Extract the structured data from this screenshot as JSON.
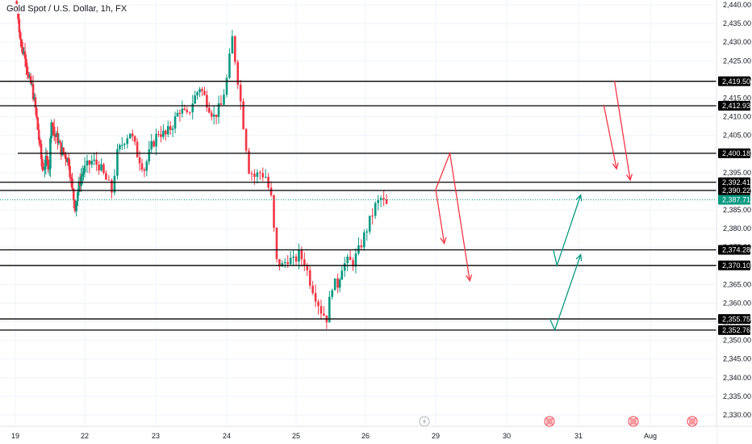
{
  "header": {
    "title": "Gold Spot / U.S. Dollar, 1h, FX"
  },
  "chart_data": {
    "type": "candlestick",
    "title": "Gold Spot / U.S. Dollar, 1h, FX",
    "ylim": [
      2326,
      2442
    ],
    "x_range": [
      19.0,
      32.4
    ],
    "y_ticks": [
      2440,
      2435,
      2430,
      2425,
      2420,
      2415,
      2410,
      2405,
      2400,
      2395,
      2390,
      2385,
      2380,
      2375,
      2370,
      2365,
      2360,
      2355,
      2350,
      2345,
      2340,
      2335,
      2330
    ],
    "y_tick_labels": [
      "2,440.00",
      "2,435.00",
      "2,430.00",
      "2,425.00",
      "2,420.00",
      "2,415.00",
      "2,410.00",
      "2,405.00",
      "2,400.00",
      "2,395.00",
      "2,390.00",
      "2,385.00",
      "2,380.00",
      "2,375.00",
      "2,370.00",
      "2,365.00",
      "2,360.00",
      "2,355.00",
      "2,350.00",
      "2,345.00",
      "2,340.00",
      "2,335.00",
      "2,330.00"
    ],
    "x_ticks": [
      {
        "x": 19,
        "label": "19"
      },
      {
        "x": 22,
        "label": "22"
      },
      {
        "x": 23,
        "label": "23"
      },
      {
        "x": 24,
        "label": "24"
      },
      {
        "x": 25,
        "label": "25"
      },
      {
        "x": 26,
        "label": "26"
      },
      {
        "x": 29,
        "label": "29"
      },
      {
        "x": 30,
        "label": "30"
      },
      {
        "x": 31,
        "label": "31"
      },
      {
        "x": 32,
        "label": "Aug"
      }
    ],
    "levels": [
      {
        "value": 2419.5,
        "label": "2,419.50",
        "x_start": 19.0
      },
      {
        "value": 2412.93,
        "label": "2,412.93",
        "x_start": 19.0
      },
      {
        "value": 2400.18,
        "label": "2,400.18",
        "x_start": 19.03
      },
      {
        "value": 2392.41,
        "label": "2,392.41",
        "x_start": 19.0
      },
      {
        "value": 2390.22,
        "label": "2,390.22",
        "x_start": 19.0
      },
      {
        "value": 2374.28,
        "label": "2,374.28",
        "x_start": 19.0
      },
      {
        "value": 2370.1,
        "label": "2,370.10",
        "x_start": 19.0
      },
      {
        "value": 2355.75,
        "label": "2,355.75",
        "x_start": 19.0
      },
      {
        "value": 2352.76,
        "label": "2,352.76",
        "x_start": 19.0
      }
    ],
    "current_price": {
      "value": 2387.71,
      "label": "2,387.71"
    },
    "candle_path": [
      [
        19.0,
        2441
      ],
      [
        19.08,
        2437
      ],
      [
        19.18,
        2428
      ],
      [
        19.28,
        2427
      ],
      [
        19.38,
        2420
      ],
      [
        19.48,
        2418
      ],
      [
        19.58,
        2412
      ],
      [
        19.68,
        2404
      ],
      [
        19.78,
        2396
      ],
      [
        19.88,
        2398
      ],
      [
        19.98,
        2397
      ],
      [
        20.04,
        2410
      ],
      [
        20.12,
        2405
      ],
      [
        20.22,
        2404
      ],
      [
        20.32,
        2401
      ],
      [
        20.42,
        2400
      ],
      [
        20.54,
        2398
      ],
      [
        20.64,
        2390
      ],
      [
        20.72,
        2386
      ],
      [
        20.8,
        2390
      ],
      [
        20.9,
        2394
      ],
      [
        21.0,
        2396
      ],
      [
        21.1,
        2398
      ],
      [
        21.2,
        2397
      ],
      [
        21.3,
        2393
      ],
      [
        21.38,
        2390
      ],
      [
        21.46,
        2400
      ],
      [
        21.56,
        2404
      ],
      [
        21.64,
        2406
      ],
      [
        21.74,
        2400
      ],
      [
        21.84,
        2396
      ],
      [
        21.94,
        2402
      ],
      [
        22.04,
        2406
      ],
      [
        22.14,
        2405
      ],
      [
        22.24,
        2408
      ],
      [
        22.34,
        2412
      ],
      [
        22.44,
        2410
      ],
      [
        22.52,
        2414
      ],
      [
        22.62,
        2418
      ],
      [
        22.72,
        2414
      ],
      [
        22.82,
        2410
      ],
      [
        22.92,
        2413
      ],
      [
        23.0,
        2420
      ],
      [
        23.08,
        2431
      ],
      [
        23.16,
        2420
      ],
      [
        23.24,
        2408
      ],
      [
        23.32,
        2396
      ],
      [
        23.4,
        2394
      ],
      [
        23.48,
        2395
      ],
      [
        23.56,
        2394
      ],
      [
        23.64,
        2388
      ],
      [
        23.72,
        2371
      ],
      [
        23.8,
        2370
      ],
      [
        23.88,
        2372
      ],
      [
        23.96,
        2371
      ],
      [
        24.04,
        2373
      ],
      [
        24.12,
        2371
      ],
      [
        24.2,
        2366
      ],
      [
        24.28,
        2362
      ],
      [
        24.36,
        2358
      ],
      [
        24.44,
        2356
      ],
      [
        24.52,
        2365
      ],
      [
        24.6,
        2365
      ],
      [
        24.66,
        2370
      ],
      [
        24.74,
        2371
      ],
      [
        24.82,
        2371
      ],
      [
        24.9,
        2374
      ],
      [
        24.98,
        2378
      ],
      [
        25.06,
        2382
      ],
      [
        25.14,
        2386
      ],
      [
        25.22,
        2388
      ],
      [
        25.3,
        2386
      ]
    ],
    "x_time_map": [
      [
        19.0,
        19
      ],
      [
        22.0,
        22
      ],
      [
        23.0,
        23
      ],
      [
        24.0,
        24
      ],
      [
        25.0,
        25
      ],
      [
        26.0,
        26
      ],
      [
        29.0,
        29
      ],
      [
        30.0,
        30
      ],
      [
        31.0,
        31
      ],
      [
        32.0,
        32
      ]
    ],
    "projections": [
      {
        "color": "#f23645",
        "points": [
          [
            28.0,
            2390.5
          ],
          [
            28.2,
            2400.2
          ],
          [
            28.48,
            2366
          ]
        ]
      },
      {
        "color": "#f23645",
        "points": [
          [
            28.0,
            2390.5
          ],
          [
            28.12,
            2376
          ]
        ]
      },
      {
        "color": "#f23645",
        "points": [
          [
            30.5,
            2419.7
          ],
          [
            30.72,
            2393
          ]
        ]
      },
      {
        "color": "#f23645",
        "points": [
          [
            30.35,
            2413.2
          ],
          [
            30.53,
            2396
          ]
        ]
      },
      {
        "color": "#089981",
        "points": [
          [
            29.65,
            2374.3
          ],
          [
            29.7,
            2370.1
          ],
          [
            30.03,
            2389
          ]
        ]
      },
      {
        "color": "#089981",
        "points": [
          [
            29.6,
            2355.8
          ],
          [
            29.67,
            2352.8
          ],
          [
            30.03,
            2373
          ]
        ]
      }
    ],
    "up_color": "#089981",
    "down_color": "#f23645",
    "event_icons": [
      {
        "x": 29.0,
        "name": "lightning-icon",
        "color": "#b2b5be"
      },
      {
        "x": 30.6,
        "name": "us-flag-icon",
        "color": "#f23645"
      },
      {
        "x": 31.7,
        "name": "us-flag-icon",
        "color": "#f23645"
      },
      {
        "x": 32.55,
        "name": "us-flag-icon",
        "color": "#f23645"
      }
    ]
  }
}
